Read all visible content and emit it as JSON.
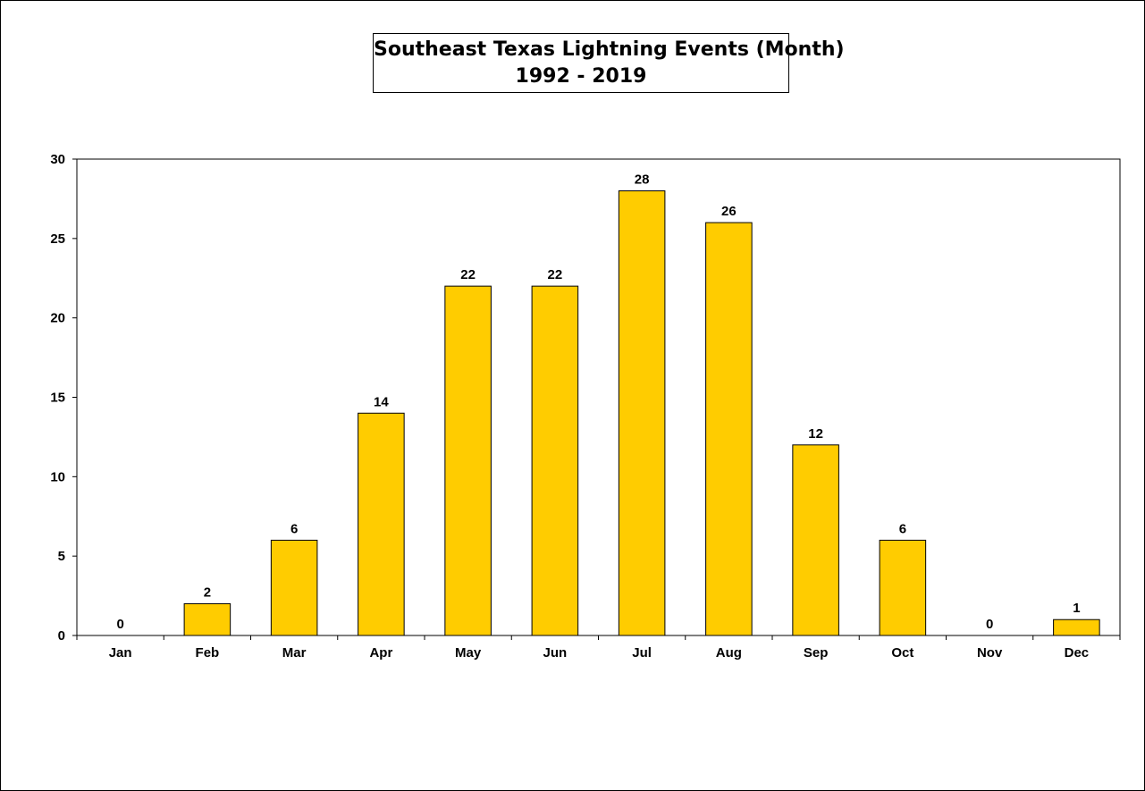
{
  "chart_data": {
    "type": "bar",
    "title": "Southeast Texas Lightning Events (Month)",
    "subtitle": "1992 - 2019",
    "categories": [
      "Jan",
      "Feb",
      "Mar",
      "Apr",
      "May",
      "Jun",
      "Jul",
      "Aug",
      "Sep",
      "Oct",
      "Nov",
      "Dec"
    ],
    "values": [
      0,
      2,
      6,
      14,
      22,
      22,
      28,
      26,
      12,
      6,
      0,
      1
    ],
    "data_labels": true,
    "xlabel": "",
    "ylabel": "",
    "ylim": [
      0,
      30
    ],
    "yticks": [
      0,
      5,
      10,
      15,
      20,
      25,
      30
    ],
    "grid": false,
    "legend": "none",
    "bar_color": "#FFCC00",
    "bar_edge_color": "#000000"
  }
}
